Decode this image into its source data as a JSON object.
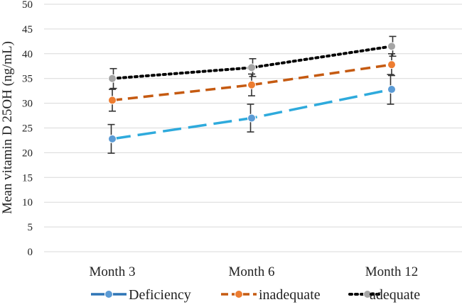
{
  "chart_data": {
    "type": "line",
    "title": "",
    "xlabel": "",
    "ylabel": "Mean vitamin D 25OH (ng/mL)",
    "categories": [
      "Month 3",
      "Month 6",
      "Month 12"
    ],
    "ylim": [
      0,
      50
    ],
    "yticks": [
      "0",
      "5",
      "10",
      "15",
      "20",
      "25",
      "30",
      "35",
      "40",
      "45",
      "50"
    ],
    "grid": true,
    "legend_position": "bottom",
    "series": [
      {
        "name": "Deficiency",
        "values": [
          22.8,
          27.0,
          32.8
        ],
        "error": [
          2.9,
          2.8,
          3.0
        ],
        "line_color": "#2eaadc",
        "legend_color": "#2e75b6",
        "marker_color": "#5b9bd5",
        "dash": "long-dash"
      },
      {
        "name": "inadequate",
        "values": [
          30.6,
          33.7,
          37.8
        ],
        "error": [
          2.2,
          2.2,
          2.2
        ],
        "line_color": "#c55a11",
        "legend_color": "#c55a11",
        "marker_color": "#ed7d31",
        "dash": "dash"
      },
      {
        "name": "adequate",
        "values": [
          35.0,
          37.2,
          41.5
        ],
        "error": [
          2.0,
          1.8,
          2.0
        ],
        "line_color": "#000000",
        "legend_color": "#000000",
        "marker_color": "#a5a5a5",
        "dash": "dot"
      }
    ]
  }
}
